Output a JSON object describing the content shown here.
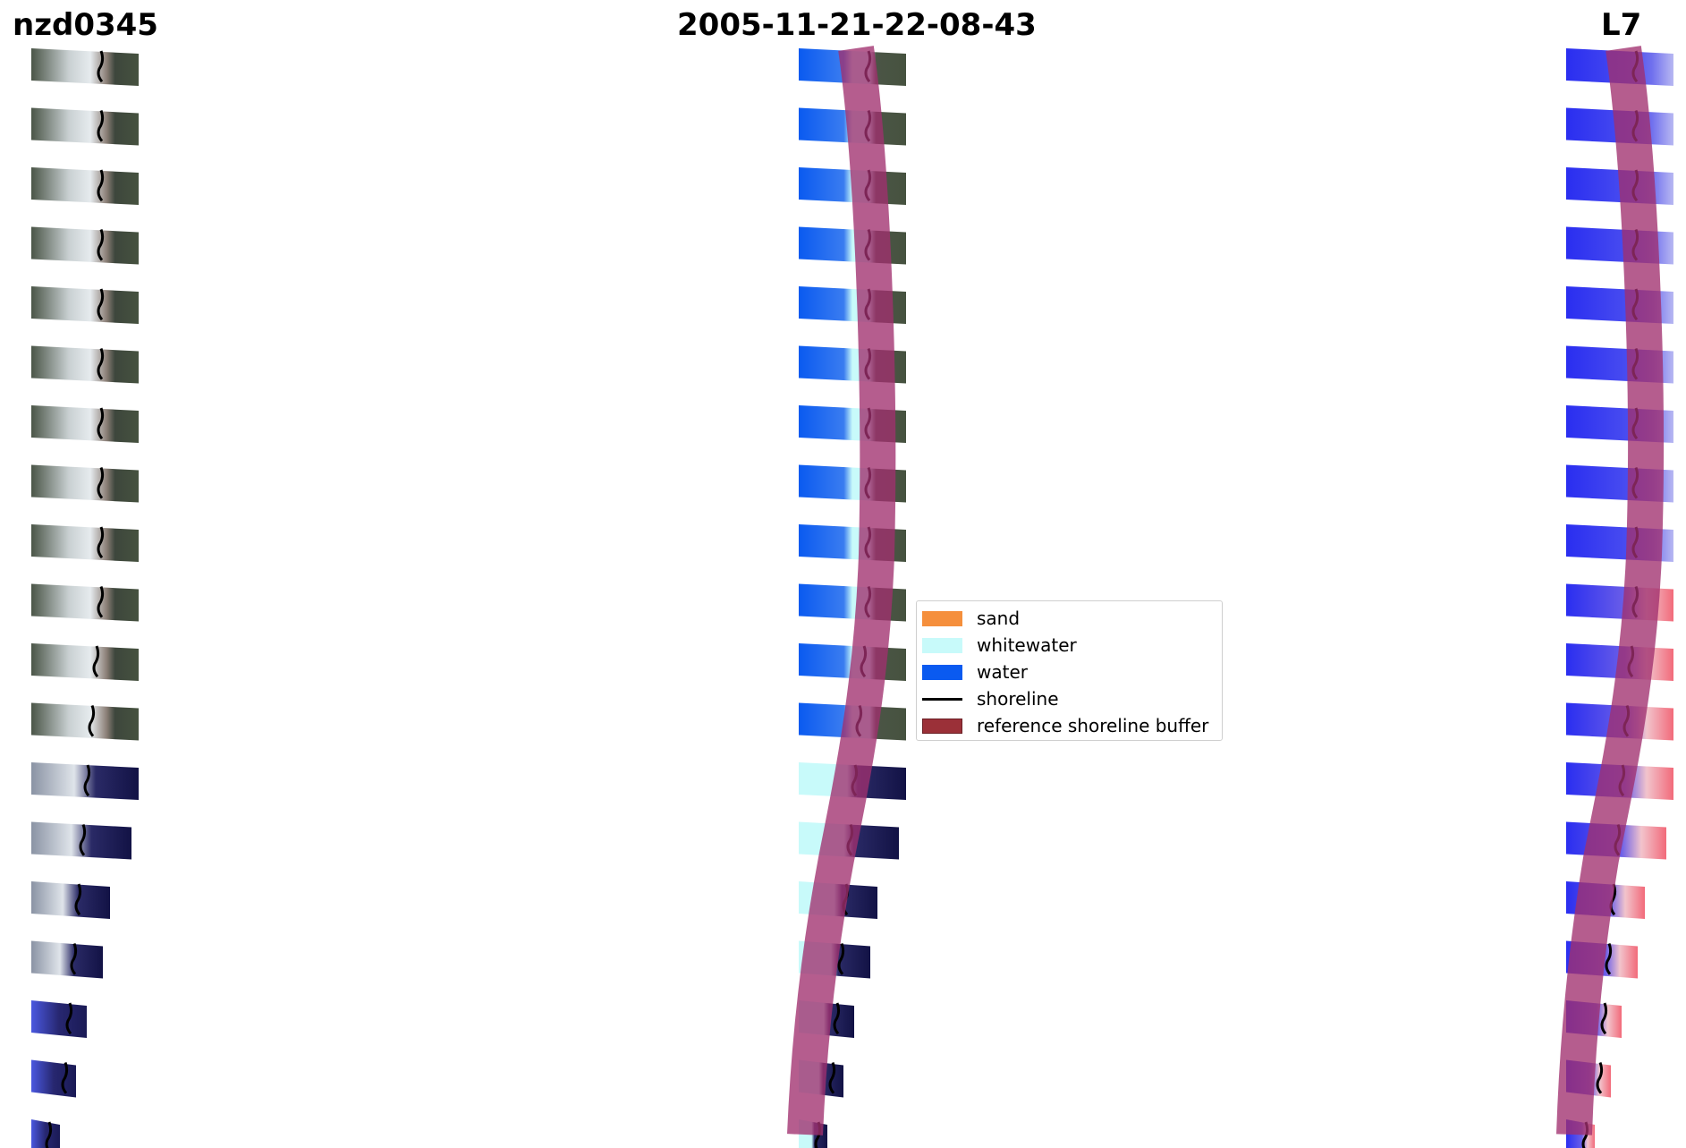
{
  "titles": {
    "left": "nzd0345",
    "center": "2005-11-21-22-08-43",
    "right": "L7"
  },
  "legend": {
    "items": [
      {
        "label": "sand",
        "color": "#f58f3c",
        "kind": "patch"
      },
      {
        "label": "whitewater",
        "color": "#c8fafa",
        "kind": "patch"
      },
      {
        "label": "water",
        "color": "#0a5af0",
        "kind": "patch"
      },
      {
        "label": "shoreline",
        "color": "#000000",
        "kind": "line"
      },
      {
        "label": "reference shoreline buffer",
        "color": "#9b3038",
        "kind": "patch"
      }
    ]
  },
  "colors": {
    "background": "#ffffff",
    "buffer": "#a0306e",
    "rgb_land": "#4a5344",
    "rgb_surf": "#d8dde0",
    "rgb_deepwater": "#1c1c55",
    "index_water": "#2a2ef0",
    "index_land": "#f0b0b8"
  }
}
